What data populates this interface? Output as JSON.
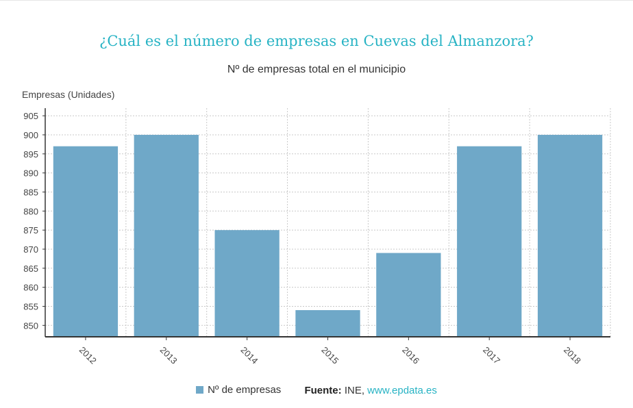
{
  "chart_data": {
    "type": "bar",
    "title": "¿Cuál es el número de empresas en Cuevas del Almanzora?",
    "subtitle": "Nº de empresas total en el municipio",
    "ylabel": "Empresas (Unidades)",
    "xlabel": "",
    "categories": [
      "2012",
      "2013",
      "2014",
      "2015",
      "2016",
      "2017",
      "2018"
    ],
    "series": [
      {
        "name": "Nº de empresas",
        "values": [
          897,
          900,
          875,
          854,
          869,
          897,
          900
        ],
        "color": "#6fa8c8"
      }
    ],
    "ylim": [
      847,
      907
    ],
    "yticks": [
      850,
      855,
      860,
      865,
      870,
      875,
      880,
      885,
      890,
      895,
      900,
      905
    ],
    "grid": true,
    "legend_position": "bottom"
  },
  "source": {
    "label": "Fuente:",
    "text": "INE,",
    "link": "www.epdata.es"
  }
}
